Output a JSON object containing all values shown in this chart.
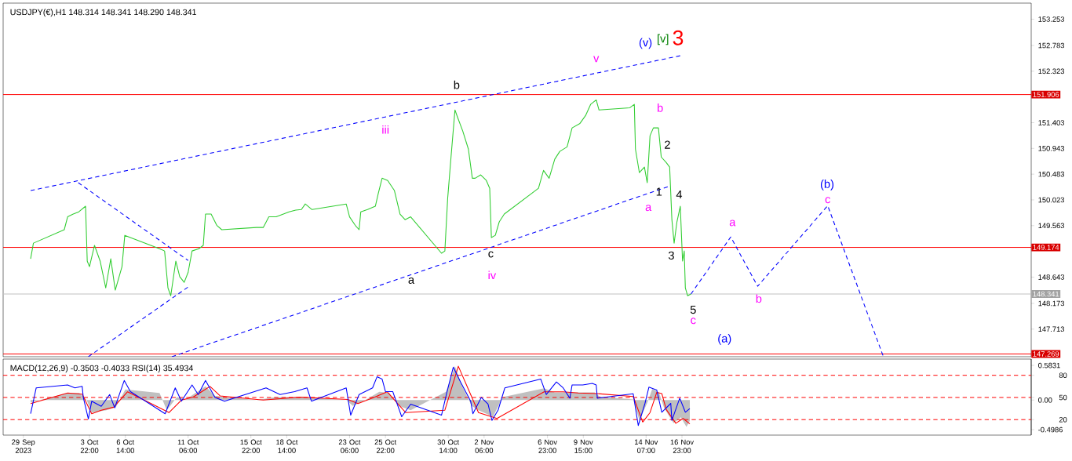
{
  "chart_data": [
    {
      "type": "line",
      "title": "USDJPY(€),H1  148.314 148.341 148.290 148.341",
      "xlim": [
        "2023-09-27T12:00",
        "2023-12-12T22:00"
      ],
      "ylim": [
        147.22,
        153.54
      ],
      "yticks": [
        153.253,
        152.783,
        152.323,
        151.403,
        150.943,
        150.483,
        150.023,
        149.563,
        148.643,
        148.173,
        147.713
      ],
      "tick_labels": "y",
      "series": [
        {
          "color": "#32cd32",
          "x": [
            "2023-09-29T13:00",
            "2023-09-29T18:00",
            "2023-10-02T01:00",
            "2023-10-02T07:00",
            "2023-10-02T17:00",
            "2023-10-03T03:00",
            "2023-10-03T15:00",
            "2023-10-03T18:00",
            "2023-10-03T22:00",
            "2023-10-04T07:00",
            "2023-10-04T17:00",
            "2023-10-05T03:00",
            "2023-10-05T12:00",
            "2023-10-05T20:00",
            "2023-10-06T08:00",
            "2023-10-06T13:00",
            "2023-10-09T03:00",
            "2023-10-09T12:00",
            "2023-10-09T18:00",
            "2023-10-09T23:00",
            "2023-10-10T08:00",
            "2023-10-10T15:00",
            "2023-10-10T23:00",
            "2023-10-11T06:00",
            "2023-10-11T13:00",
            "2023-10-12T01:00",
            "2023-10-12T09:00",
            "2023-10-12T13:00",
            "2023-10-12T23:00",
            "2023-10-13T09:00",
            "2023-10-13T18:00",
            "2023-10-16T08:00",
            "2023-10-16T20:00",
            "2023-10-17T06:00",
            "2023-10-17T19:00",
            "2023-10-18T08:00",
            "2023-10-18T18:00",
            "2023-10-19T06:00",
            "2023-10-19T16:00",
            "2023-10-19T23:00",
            "2023-10-20T11:00",
            "2023-10-23T00:00",
            "2023-10-23T06:00",
            "2023-10-23T16:00",
            "2023-10-23T23:00",
            "2023-10-24T02:00",
            "2023-10-24T14:00",
            "2023-10-25T04:00",
            "2023-10-25T09:00",
            "2023-10-25T16:00",
            "2023-10-26T02:00",
            "2023-10-26T14:00",
            "2023-10-27T00:00",
            "2023-10-27T09:00",
            "2023-10-27T19:00",
            "2023-10-30T02:00",
            "2023-10-30T08:00",
            "2023-10-30T13:00",
            "2023-10-30T19:00",
            "2023-10-31T02:00",
            "2023-10-31T07:00",
            "2023-10-31T16:00",
            "2023-11-01T02:00",
            "2023-11-01T09:00",
            "2023-11-01T14:00",
            "2023-11-02T00:00",
            "2023-11-02T10:00",
            "2023-11-02T16:00",
            "2023-11-02T19:00",
            "2023-11-03T02:00",
            "2023-11-03T09:00",
            "2023-11-03T18:00",
            "2023-11-06T07:00",
            "2023-11-06T16:00",
            "2023-11-07T02:00",
            "2023-11-07T12:00",
            "2023-11-07T21:00",
            "2023-11-08T10:00",
            "2023-11-08T19:00",
            "2023-11-09T09:00",
            "2023-11-09T19:00",
            "2023-11-10T04:00",
            "2023-11-10T14:00",
            "2023-11-10T19:00",
            "2023-11-13T02:00",
            "2023-11-13T10:00",
            "2023-11-13T12:00",
            "2023-11-13T19:00",
            "2023-11-14T04:00",
            "2023-11-14T09:00",
            "2023-11-14T14:00",
            "2023-11-14T20:00",
            "2023-11-15T05:00",
            "2023-11-15T10:00",
            "2023-11-15T19:00",
            "2023-11-16T01:00",
            "2023-11-16T05:00",
            "2023-11-16T09:00",
            "2023-11-16T14:00",
            "2023-11-16T20:00",
            "2023-11-17T00:00",
            "2023-11-17T03:00",
            "2023-11-17T05:00",
            "2023-11-17T09:00",
            "2023-11-17T15:00"
          ],
          "values": [
            148.97,
            149.25,
            149.49,
            149.72,
            149.77,
            149.81,
            149.91,
            148.93,
            148.83,
            149.21,
            148.93,
            148.45,
            148.97,
            148.41,
            148.83,
            149.39,
            149.15,
            149.11,
            148.45,
            148.31,
            148.93,
            148.65,
            148.55,
            148.73,
            149.11,
            149.15,
            149.21,
            149.77,
            149.77,
            149.57,
            149.49,
            149.53,
            149.53,
            149.72,
            149.72,
            149.77,
            149.81,
            149.84,
            149.85,
            149.95,
            149.85,
            149.95,
            149.72,
            149.57,
            149.49,
            149.81,
            149.85,
            149.91,
            150.13,
            150.41,
            150.37,
            150.19,
            149.77,
            149.67,
            149.72,
            149.07,
            149.11,
            150.05,
            150.79,
            151.63,
            151.49,
            151.25,
            150.93,
            150.41,
            150.41,
            150.47,
            150.37,
            150.23,
            149.35,
            149.39,
            149.63,
            149.77,
            150.23,
            150.55,
            150.41,
            150.75,
            150.89,
            150.97,
            151.31,
            151.39,
            151.53,
            151.73,
            151.81,
            151.63,
            151.67,
            151.73,
            150.93,
            150.51,
            150.61,
            150.33,
            151.17,
            151.31,
            151.31,
            150.79,
            150.69,
            150.61,
            149.67,
            149.25,
            149.63,
            149.91,
            148.93,
            149.11,
            148.45,
            148.31,
            148.34
          ]
        },
        {
          "color": "#0000ff",
          "line_style": "dashed",
          "x": [
            "2023-09-29T13:00",
            "2023-11-16T20:00"
          ],
          "values": [
            150.19,
            152.6
          ]
        },
        {
          "color": "#0000ff",
          "line_style": "dashed",
          "x": [
            "2023-10-10T01:00",
            "2023-11-15T22:00"
          ],
          "values": [
            147.22,
            150.26
          ]
        },
        {
          "color": "#0000ff",
          "line_style": "dashed",
          "x": [
            "2023-10-03T02:00",
            "2023-10-11T06:00"
          ],
          "values": [
            150.33,
            148.94
          ]
        },
        {
          "color": "#0000ff",
          "line_style": "dashed",
          "x": [
            "2023-10-03T20:00",
            "2023-10-11T08:00"
          ],
          "values": [
            147.22,
            148.48
          ]
        },
        {
          "color": "#0000ff",
          "line_style": "dashed",
          "x": [
            "2023-11-17T15:00",
            "2023-11-20T14:00",
            "2023-11-22T14:00",
            "2023-11-27T19:00",
            "2023-12-01T22:00"
          ],
          "values": [
            148.34,
            149.36,
            148.48,
            149.92,
            147.23
          ]
        }
      ],
      "ref_lines": [
        {
          "axis": "y",
          "value": 151.906,
          "label": "151.906",
          "color": "#ff0000"
        },
        {
          "axis": "y",
          "value": 149.174,
          "label": "149.174",
          "color": "#ff0000"
        },
        {
          "axis": "y",
          "value": 147.269,
          "label": "147.269",
          "color": "#ff0000"
        },
        {
          "axis": "y",
          "value": 148.341,
          "label": "148.341",
          "color": "#c0c0c0"
        }
      ],
      "annotations": [
        "iii",
        "b",
        "v",
        "(v)",
        "[v]",
        "3",
        "b",
        "2",
        "1",
        "a",
        "4",
        "3",
        "a",
        "c",
        "iv",
        "5",
        "c",
        "(a)",
        "a",
        "b",
        "(b)",
        "c"
      ]
    },
    {
      "type": "line",
      "title": "MACD(12,26,9) -0.3503 -0.4033  RSI(14) 35.4934",
      "xlim": [
        "2023-09-27T12:00",
        "2023-12-12T22:00"
      ],
      "xticks": [
        {
          "value": "2023-09-29",
          "label": "29 Sep 2023"
        },
        {
          "value": "2023-10-03T22:00",
          "label": "3 Oct 22:00"
        },
        {
          "value": "2023-10-06T14:00",
          "label": "6 Oct 14:00"
        },
        {
          "value": "2023-10-11T06:00",
          "label": "11 Oct 06:00"
        },
        {
          "value": "2023-10-15T22:00",
          "label": "15 Oct 22:00"
        },
        {
          "value": "2023-10-18T14:00",
          "label": "18 Oct 14:00"
        },
        {
          "value": "2023-10-23T06:00",
          "label": "23 Oct 06:00"
        },
        {
          "value": "2023-10-25T22:00",
          "label": "25 Oct 22:00"
        },
        {
          "value": "2023-10-30T14:00",
          "label": "30 Oct 14:00"
        },
        {
          "value": "2023-11-02T06:00",
          "label": "2 Nov 06:00"
        },
        {
          "value": "2023-11-06T23:00",
          "label": "6 Nov 23:00"
        },
        {
          "value": "2023-11-09T15:00",
          "label": "9 Nov 15:00"
        },
        {
          "value": "2023-11-14T07:00",
          "label": "14 Nov 07:00"
        },
        {
          "value": "2023-11-16T23:00",
          "label": "16 Nov 23:00"
        }
      ],
      "ylim": [
        -0.59,
        0.69
      ],
      "yticks": [
        0.5831,
        {
          "value": 0,
          "label": "0.00"
        },
        -0.4986
      ],
      "y2lim": [
        -1,
        102
      ],
      "y2ticks": [
        80,
        50,
        20
      ],
      "series": [
        {
          "type": "area",
          "color": "#c0c0c0",
          "x": [
            "2023-09-29T13:00",
            "2023-10-02T07:00",
            "2023-10-03T04:00",
            "2023-10-03T17:00",
            "2023-10-04T02:00",
            "2023-10-05T04:00",
            "2023-10-05T21:00",
            "2023-10-06T14:00",
            "2023-10-09T03:00",
            "2023-10-09T16:00",
            "2023-10-10T10:00",
            "2023-10-11T02:00",
            "2023-10-11T19:00",
            "2023-10-12T13:00",
            "2023-10-13T06:00",
            "2023-10-16T08:00",
            "2023-10-17T18:00",
            "2023-10-19T13:00",
            "2023-10-23T00:00",
            "2023-10-23T12:00",
            "2023-10-24T10:00",
            "2023-10-25T11:00",
            "2023-10-26T05:00",
            "2023-10-26T22:00",
            "2023-10-27T19:00",
            "2023-10-30T10:00",
            "2023-10-31T02:00",
            "2023-10-31T14:00",
            "2023-11-01T08:00",
            "2023-11-01T20:00",
            "2023-11-02T22:00",
            "2023-11-03T15:00",
            "2023-11-06T17:00",
            "2023-11-07T12:00",
            "2023-11-08T21:00",
            "2023-11-10T11:00",
            "2023-11-10T20:00",
            "2023-11-13T08:00",
            "2023-11-13T19:00",
            "2023-11-14T09:00",
            "2023-11-14T18:00",
            "2023-11-15T06:00",
            "2023-11-15T15:00",
            "2023-11-16T08:00",
            "2023-11-16T21:00",
            "2023-11-17T07:00",
            "2023-11-17T13:00"
          ],
          "values": [
            -0.04,
            0.12,
            0.12,
            0,
            -0.21,
            -0.17,
            -0.12,
            0.18,
            0.12,
            -0.17,
            0.05,
            0.01,
            0.12,
            0.23,
            0.07,
            0,
            0.05,
            0.05,
            0,
            -0.1,
            0,
            0.14,
            0.12,
            -0.1,
            -0.17,
            0.14,
            0.57,
            0.25,
            -0.1,
            -0.17,
            -0.28,
            0.05,
            0.2,
            0.13,
            0.13,
            0.13,
            0.06,
            0.01,
            -0.34,
            -0.05,
            0.19,
            0.13,
            -0.13,
            -0.39,
            -0.29,
            -0.45,
            -0.35
          ]
        },
        {
          "color": "#ff0000",
          "x": [
            "2023-09-29T13:00",
            "2023-10-02T07:00",
            "2023-10-03T09:00",
            "2023-10-04T02:00",
            "2023-10-04T19:00",
            "2023-10-05T17:00",
            "2023-10-06T18:00",
            "2023-10-09T20:00",
            "2023-10-10T18:00",
            "2023-10-11T15:00",
            "2023-10-12T21:00",
            "2023-10-13T15:00",
            "2023-10-16T20:00",
            "2023-10-19T13:00",
            "2023-10-23T03:00",
            "2023-10-23T21:00",
            "2023-10-25T03:00",
            "2023-10-26T01:00",
            "2023-10-27T10:00",
            "2023-10-30T08:00",
            "2023-10-31T08:00",
            "2023-11-01T08:00",
            "2023-11-01T20:00",
            "2023-11-03T05:00",
            "2023-11-06T17:00",
            "2023-11-08T03:00",
            "2023-11-09T06:00",
            "2023-11-10T14:00",
            "2023-11-13T08:00",
            "2023-11-14T01:00",
            "2023-11-14T14:00",
            "2023-11-15T02:00",
            "2023-11-15T11:00",
            "2023-11-15T19:00",
            "2023-11-16T12:00",
            "2023-11-17T01:00",
            "2023-11-17T13:00"
          ],
          "values": [
            -0.06,
            0.12,
            0.1,
            -0.23,
            -0.17,
            -0.12,
            0.14,
            -0.21,
            0,
            0.05,
            0.23,
            0.07,
            0,
            0.05,
            0.01,
            -0.06,
            0.05,
            0.14,
            -0.21,
            -0.17,
            0.57,
            0.05,
            -0.21,
            -0.31,
            0.14,
            0.14,
            0.12,
            0.11,
            0.06,
            -0.37,
            -0.21,
            0.13,
            0.11,
            -0.16,
            -0.39,
            -0.31,
            -0.4
          ]
        },
        {
          "color": "#0000ff",
          "axis": "y2",
          "x": [
            "2023-09-29T13:00",
            "2023-09-29T23:00",
            "2023-10-02T07:00",
            "2023-10-02T20:00",
            "2023-10-03T09:00",
            "2023-10-03T11:00",
            "2023-10-03T20:00",
            "2023-10-04T02:00",
            "2023-10-04T19:00",
            "2023-10-05T10:00",
            "2023-10-05T19:00",
            "2023-10-06T12:00",
            "2023-10-06T23:00",
            "2023-10-09T13:00",
            "2023-10-10T07:00",
            "2023-10-10T18:00",
            "2023-10-11T13:00",
            "2023-10-12T00:00",
            "2023-10-12T13:00",
            "2023-10-13T06:00",
            "2023-10-13T23:00",
            "2023-10-17T01:00",
            "2023-10-18T02:00",
            "2023-10-19T04:00",
            "2023-10-20T02:00",
            "2023-10-20T10:00",
            "2023-10-23T00:00",
            "2023-10-23T08:00",
            "2023-10-23T23:00",
            "2023-10-24T23:00",
            "2023-10-25T07:00",
            "2023-10-25T16:00",
            "2023-10-25T22:00",
            "2023-10-26T11:00",
            "2023-10-27T03:00",
            "2023-10-27T19:00",
            "2023-10-30T02:00",
            "2023-10-30T12:00",
            "2023-10-30T23:00",
            "2023-10-31T12:00",
            "2023-11-01T06:00",
            "2023-11-01T10:00",
            "2023-11-02T01:00",
            "2023-11-02T13:00",
            "2023-11-02T20:00",
            "2023-11-03T07:00",
            "2023-11-03T19:00",
            "2023-11-06T11:00",
            "2023-11-06T21:00",
            "2023-11-07T15:00",
            "2023-11-08T03:00",
            "2023-11-08T15:00",
            "2023-11-08T19:00",
            "2023-11-09T14:00",
            "2023-11-10T07:00",
            "2023-11-10T14:00",
            "2023-11-10T16:00",
            "2023-11-13T08:00",
            "2023-11-13T17:00",
            "2023-11-14T05:00",
            "2023-11-14T12:00",
            "2023-11-15T02:00",
            "2023-11-15T11:00",
            "2023-11-16T03:00",
            "2023-11-16T05:00",
            "2023-11-16T19:00",
            "2023-11-17T05:00",
            "2023-11-17T13:00"
          ],
          "values": [
            28,
            63,
            67,
            63,
            65,
            50,
            21,
            45,
            38,
            54,
            36,
            73,
            58,
            28,
            63,
            45,
            67,
            54,
            73,
            50,
            45,
            63,
            54,
            58,
            63,
            45,
            63,
            26,
            54,
            63,
            78,
            75,
            58,
            58,
            24,
            41,
            26,
            58,
            91,
            71,
            45,
            28,
            50,
            41,
            19,
            33,
            63,
            75,
            54,
            71,
            63,
            49,
            67,
            67,
            69,
            67,
            49,
            55,
            12,
            42,
            64,
            60,
            30,
            42,
            19,
            49,
            30,
            35
          ]
        }
      ],
      "ref_lines": [
        {
          "axis": "y2",
          "value": 80,
          "color": "#ff0000",
          "line_style": "dashed"
        },
        {
          "axis": "y2",
          "value": 50,
          "color": "#ff0000",
          "line_style": "dashed"
        },
        {
          "axis": "y2",
          "value": 20,
          "color": "#ff0000",
          "line_style": "dashed"
        }
      ]
    }
  ]
}
